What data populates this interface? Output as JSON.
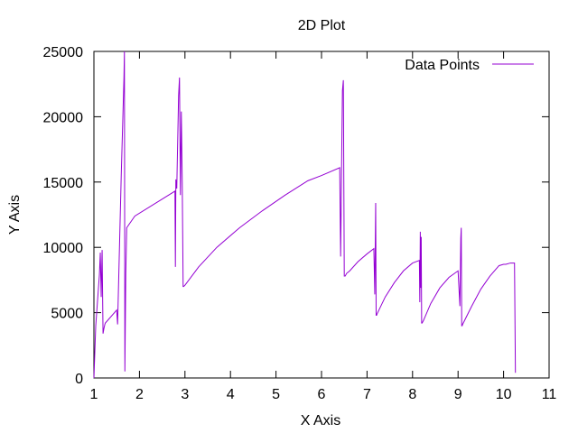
{
  "chart_data": {
    "type": "line",
    "title": "2D Plot",
    "xlabel": "X Axis",
    "ylabel": "Y Axis",
    "xlim": [
      1,
      11
    ],
    "ylim": [
      0,
      25000
    ],
    "xticks": [
      1,
      2,
      3,
      4,
      5,
      6,
      7,
      8,
      9,
      10,
      11
    ],
    "yticks": [
      0,
      5000,
      10000,
      15000,
      20000,
      25000
    ],
    "grid": false,
    "legend": "top-right",
    "line_color": "#9400d3",
    "series": [
      {
        "name": "Data Points",
        "x": [
          1.0,
          1.04,
          1.12,
          1.14,
          1.16,
          1.18,
          1.2,
          1.22,
          1.24,
          1.25,
          1.5,
          1.52,
          1.55,
          1.6,
          1.66,
          1.67,
          1.68,
          1.7,
          1.72,
          1.88,
          1.9,
          2.78,
          2.79,
          2.8,
          2.82,
          2.86,
          2.88,
          2.9,
          2.92,
          2.94,
          2.96,
          2.97,
          3.0,
          3.3,
          3.7,
          4.2,
          4.7,
          5.2,
          5.7,
          6.0,
          6.4,
          6.42,
          6.43,
          6.44,
          6.46,
          6.48,
          6.5,
          6.51,
          6.52,
          6.55,
          6.62,
          6.8,
          7.0,
          7.15,
          7.17,
          7.19,
          7.2,
          7.21,
          7.22,
          7.4,
          7.6,
          7.8,
          8.0,
          8.15,
          8.16,
          8.17,
          8.18,
          8.19,
          8.2,
          8.21,
          8.24,
          8.4,
          8.6,
          8.8,
          9.0,
          9.04,
          9.06,
          9.07,
          9.08,
          9.09,
          9.1,
          9.3,
          9.5,
          9.7,
          9.9,
          10.0,
          10.05,
          10.15,
          10.24,
          10.26
        ],
        "y": [
          0,
          4000,
          7900,
          9600,
          6200,
          9800,
          3400,
          3800,
          4100,
          4200,
          5200,
          4100,
          8400,
          15500,
          23000,
          25000,
          500,
          8000,
          11500,
          12300,
          12400,
          14300,
          8500,
          15200,
          14500,
          21600,
          23000,
          14000,
          20400,
          15000,
          7000,
          7000,
          7100,
          8500,
          10000,
          11500,
          12800,
          14000,
          15100,
          15500,
          16100,
          9300,
          12300,
          16000,
          22000,
          22800,
          7800,
          7800,
          7800,
          8000,
          8200,
          8900,
          9500,
          9900,
          6400,
          13400,
          4800,
          4800,
          4900,
          6200,
          7300,
          8200,
          8800,
          9000,
          5800,
          11200,
          6900,
          10800,
          4200,
          4200,
          4400,
          5700,
          6900,
          7700,
          8200,
          5500,
          10700,
          11500,
          4000,
          4000,
          4100,
          5500,
          6800,
          7800,
          8600,
          8700,
          8700,
          8800,
          8800,
          400
        ]
      }
    ]
  }
}
